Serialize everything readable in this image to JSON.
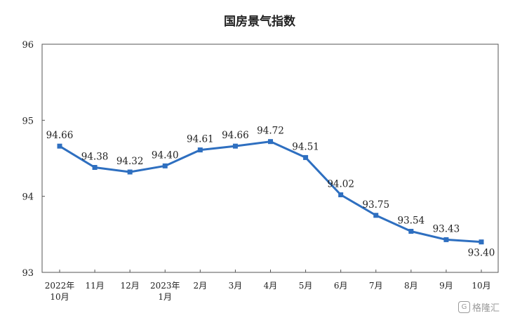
{
  "chart_data": {
    "type": "line",
    "title": "国房景气指数",
    "categories": [
      [
        "2022年",
        "10月"
      ],
      [
        "11月"
      ],
      [
        "12月"
      ],
      [
        "2023年",
        "1月"
      ],
      [
        "2月"
      ],
      [
        "3月"
      ],
      [
        "4月"
      ],
      [
        "5月"
      ],
      [
        "6月"
      ],
      [
        "7月"
      ],
      [
        "8月"
      ],
      [
        "9月"
      ],
      [
        "10月"
      ]
    ],
    "values": [
      94.66,
      94.38,
      94.32,
      94.4,
      94.61,
      94.66,
      94.72,
      94.51,
      94.02,
      93.75,
      93.54,
      93.43,
      93.4
    ],
    "data_labels": [
      "94.66",
      "94.38",
      "94.32",
      "94.40",
      "94.61",
      "94.66",
      "94.72",
      "94.51",
      "94.02",
      "93.75",
      "93.54",
      "93.43",
      "93.40"
    ],
    "yticks": [
      93,
      94,
      95,
      96
    ],
    "ylim": [
      93,
      96
    ],
    "xlabel": "",
    "ylabel": "",
    "grid": false,
    "line_color": "#2e6fc0"
  },
  "watermark": {
    "logo": "G",
    "text": "格隆汇"
  }
}
